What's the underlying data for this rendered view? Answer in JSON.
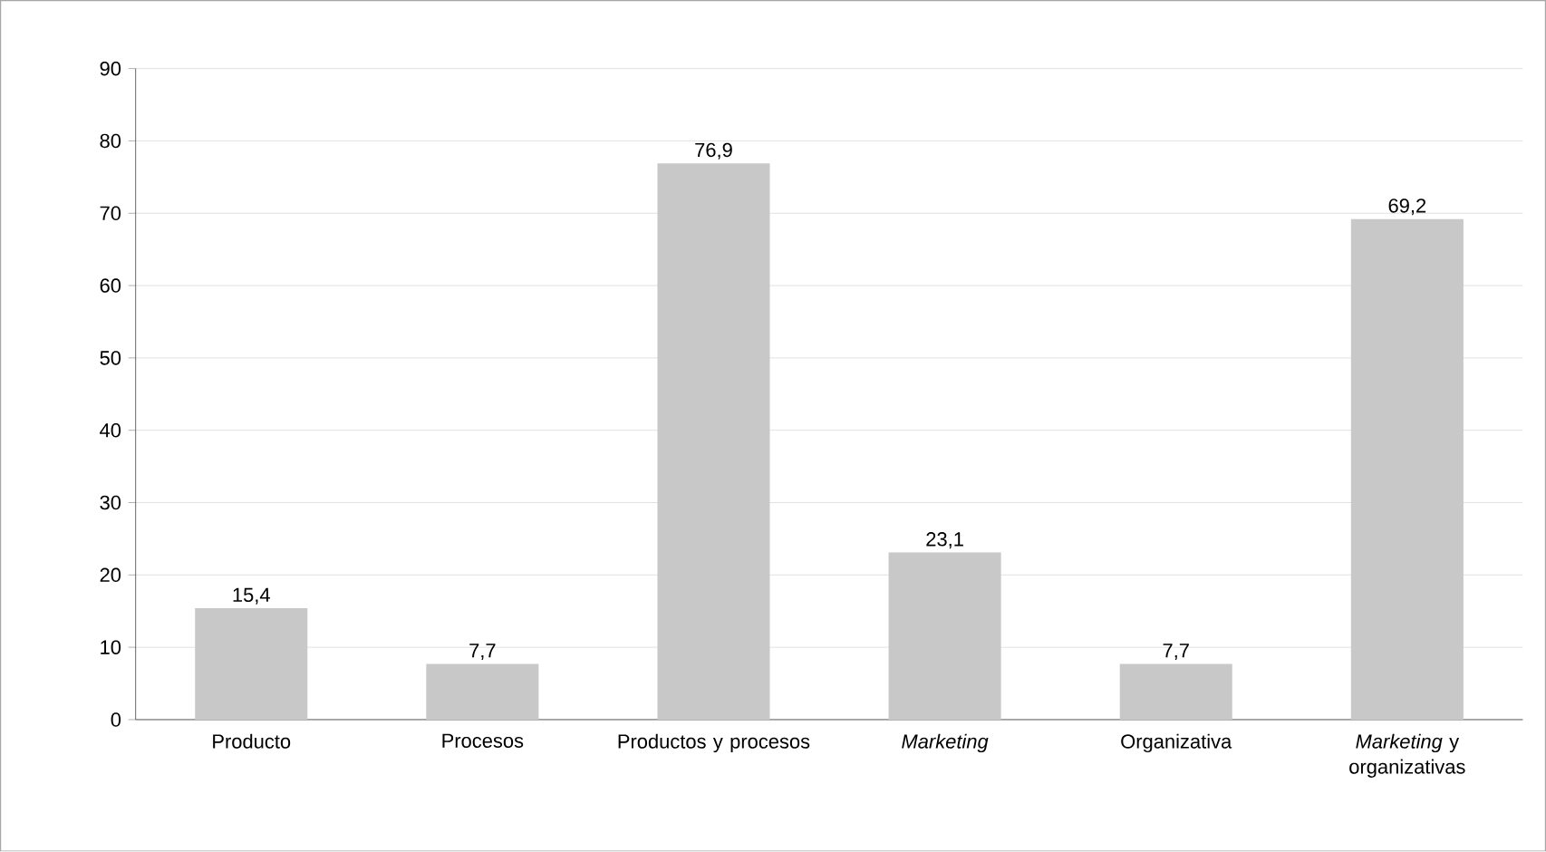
{
  "chart_data": {
    "type": "bar",
    "categories": [
      "Producto",
      "Procesos",
      "Productos y procesos",
      "*Marketing*",
      "Organizativa",
      "*Marketing* y organizativas"
    ],
    "values": [
      15.4,
      7.7,
      76.9,
      23.1,
      7.7,
      69.2
    ],
    "value_labels": [
      "15,4",
      "7,7",
      "76,9",
      "23,1",
      "7,7",
      "69,2"
    ],
    "color": "#c8c8c8",
    "ylim": [
      0,
      90
    ],
    "yticks": [
      0,
      10,
      20,
      30,
      40,
      50,
      60,
      70,
      80,
      90
    ],
    "grid": "y"
  }
}
